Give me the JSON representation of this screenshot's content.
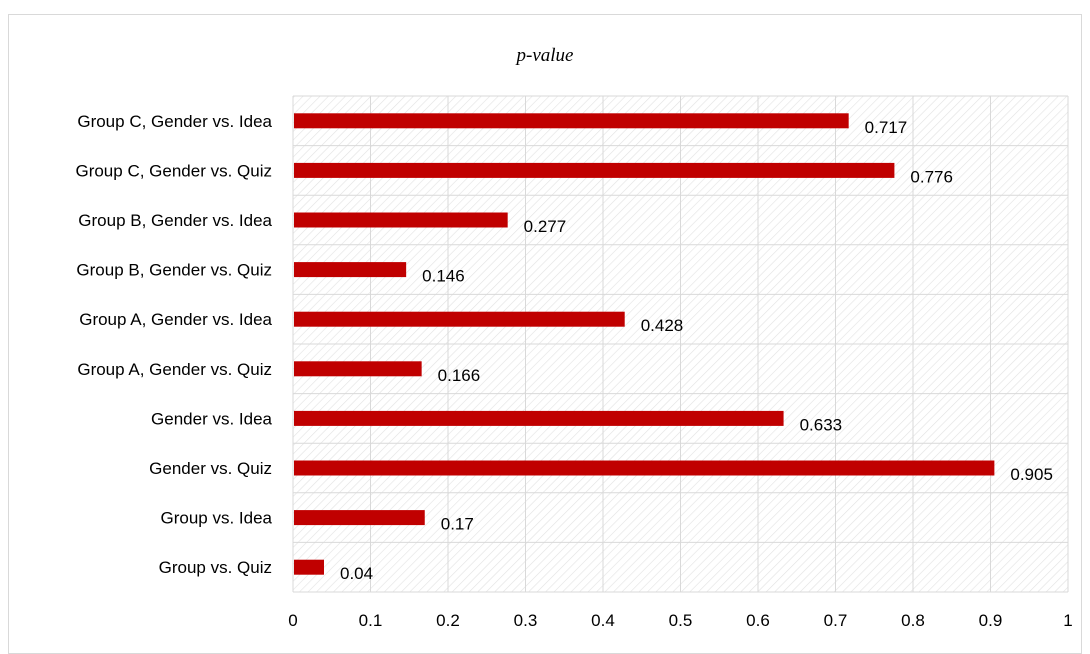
{
  "chart_data": {
    "type": "bar",
    "orientation": "horizontal",
    "title": "p-value",
    "categories": [
      "Group C, Gender vs. Idea",
      "Group C, Gender vs. Quiz",
      "Group B, Gender vs. Idea",
      "Group B, Gender vs. Quiz",
      "Group A, Gender vs. Idea",
      "Group A, Gender vs. Quiz",
      "Gender vs. Idea",
      "Gender vs. Quiz",
      "Group vs. Idea",
      "Group vs. Quiz"
    ],
    "values": [
      0.717,
      0.776,
      0.277,
      0.146,
      0.428,
      0.166,
      0.633,
      0.905,
      0.17,
      0.04
    ],
    "data_labels": [
      "0.717",
      "0.776",
      "0.277",
      "0.146",
      "0.428",
      "0.166",
      "0.633",
      "0.905",
      "0.17",
      "0.04"
    ],
    "x_ticks": [
      "0",
      "0.1",
      "0.2",
      "0.3",
      "0.4",
      "0.5",
      "0.6",
      "0.7",
      "0.8",
      "0.9",
      "1"
    ],
    "xlim": [
      0,
      1
    ],
    "xlabel": "",
    "ylabel": "",
    "grid": true,
    "legend": "none",
    "bar_color": "#c00000",
    "grid_color": "#d9d9d9",
    "plot_background": "hatched light gray"
  }
}
